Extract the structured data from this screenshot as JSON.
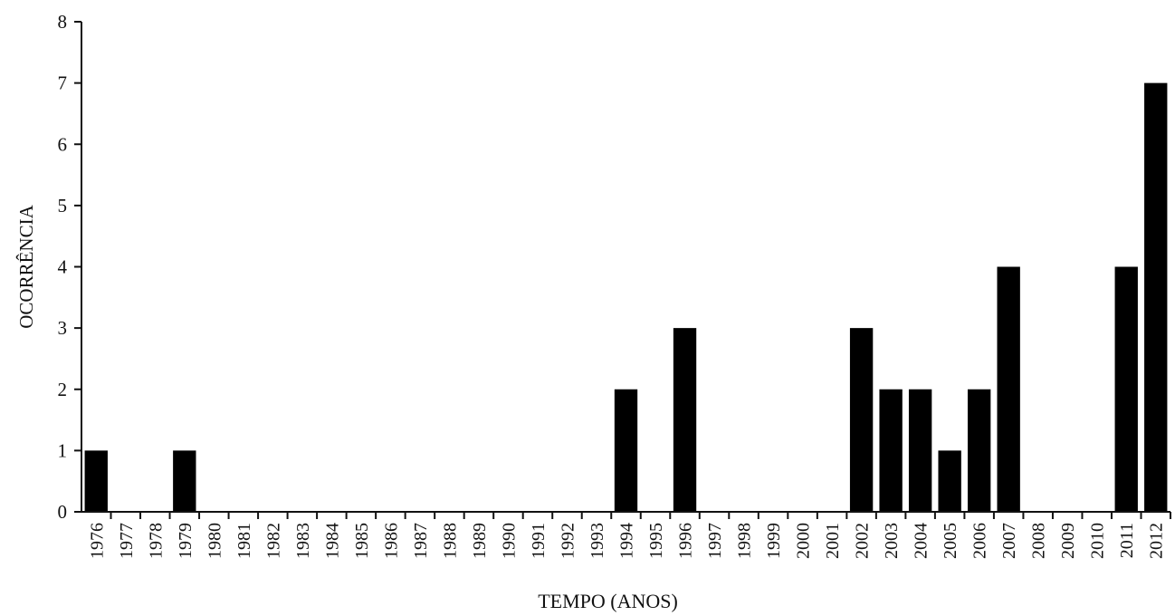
{
  "chart_data": {
    "type": "bar",
    "title": "",
    "xlabel": "TEMPO (ANOS)",
    "ylabel": "OCORRÊNCIA",
    "ylim": [
      0,
      8
    ],
    "yticks": [
      "0",
      "1",
      "2",
      "3",
      "4",
      "5",
      "6",
      "7",
      "8"
    ],
    "grid": false,
    "bar_color": "#000000",
    "categories": [
      "1976",
      "1977",
      "1978",
      "1979",
      "1980",
      "1981",
      "1982",
      "1983",
      "1984",
      "1985",
      "1986",
      "1987",
      "1988",
      "1989",
      "1990",
      "1991",
      "1992",
      "1993",
      "1994",
      "1995",
      "1996",
      "1997",
      "1998",
      "1999",
      "2000",
      "2001",
      "2002",
      "2003",
      "2004",
      "2005",
      "2006",
      "2007",
      "2008",
      "2009",
      "2010",
      "2011",
      "2012"
    ],
    "values": [
      1,
      0,
      0,
      1,
      0,
      0,
      0,
      0,
      0,
      0,
      0,
      0,
      0,
      0,
      0,
      0,
      0,
      0,
      2,
      0,
      3,
      0,
      0,
      0,
      0,
      0,
      3,
      2,
      2,
      1,
      2,
      4,
      0,
      0,
      0,
      4,
      7
    ]
  }
}
